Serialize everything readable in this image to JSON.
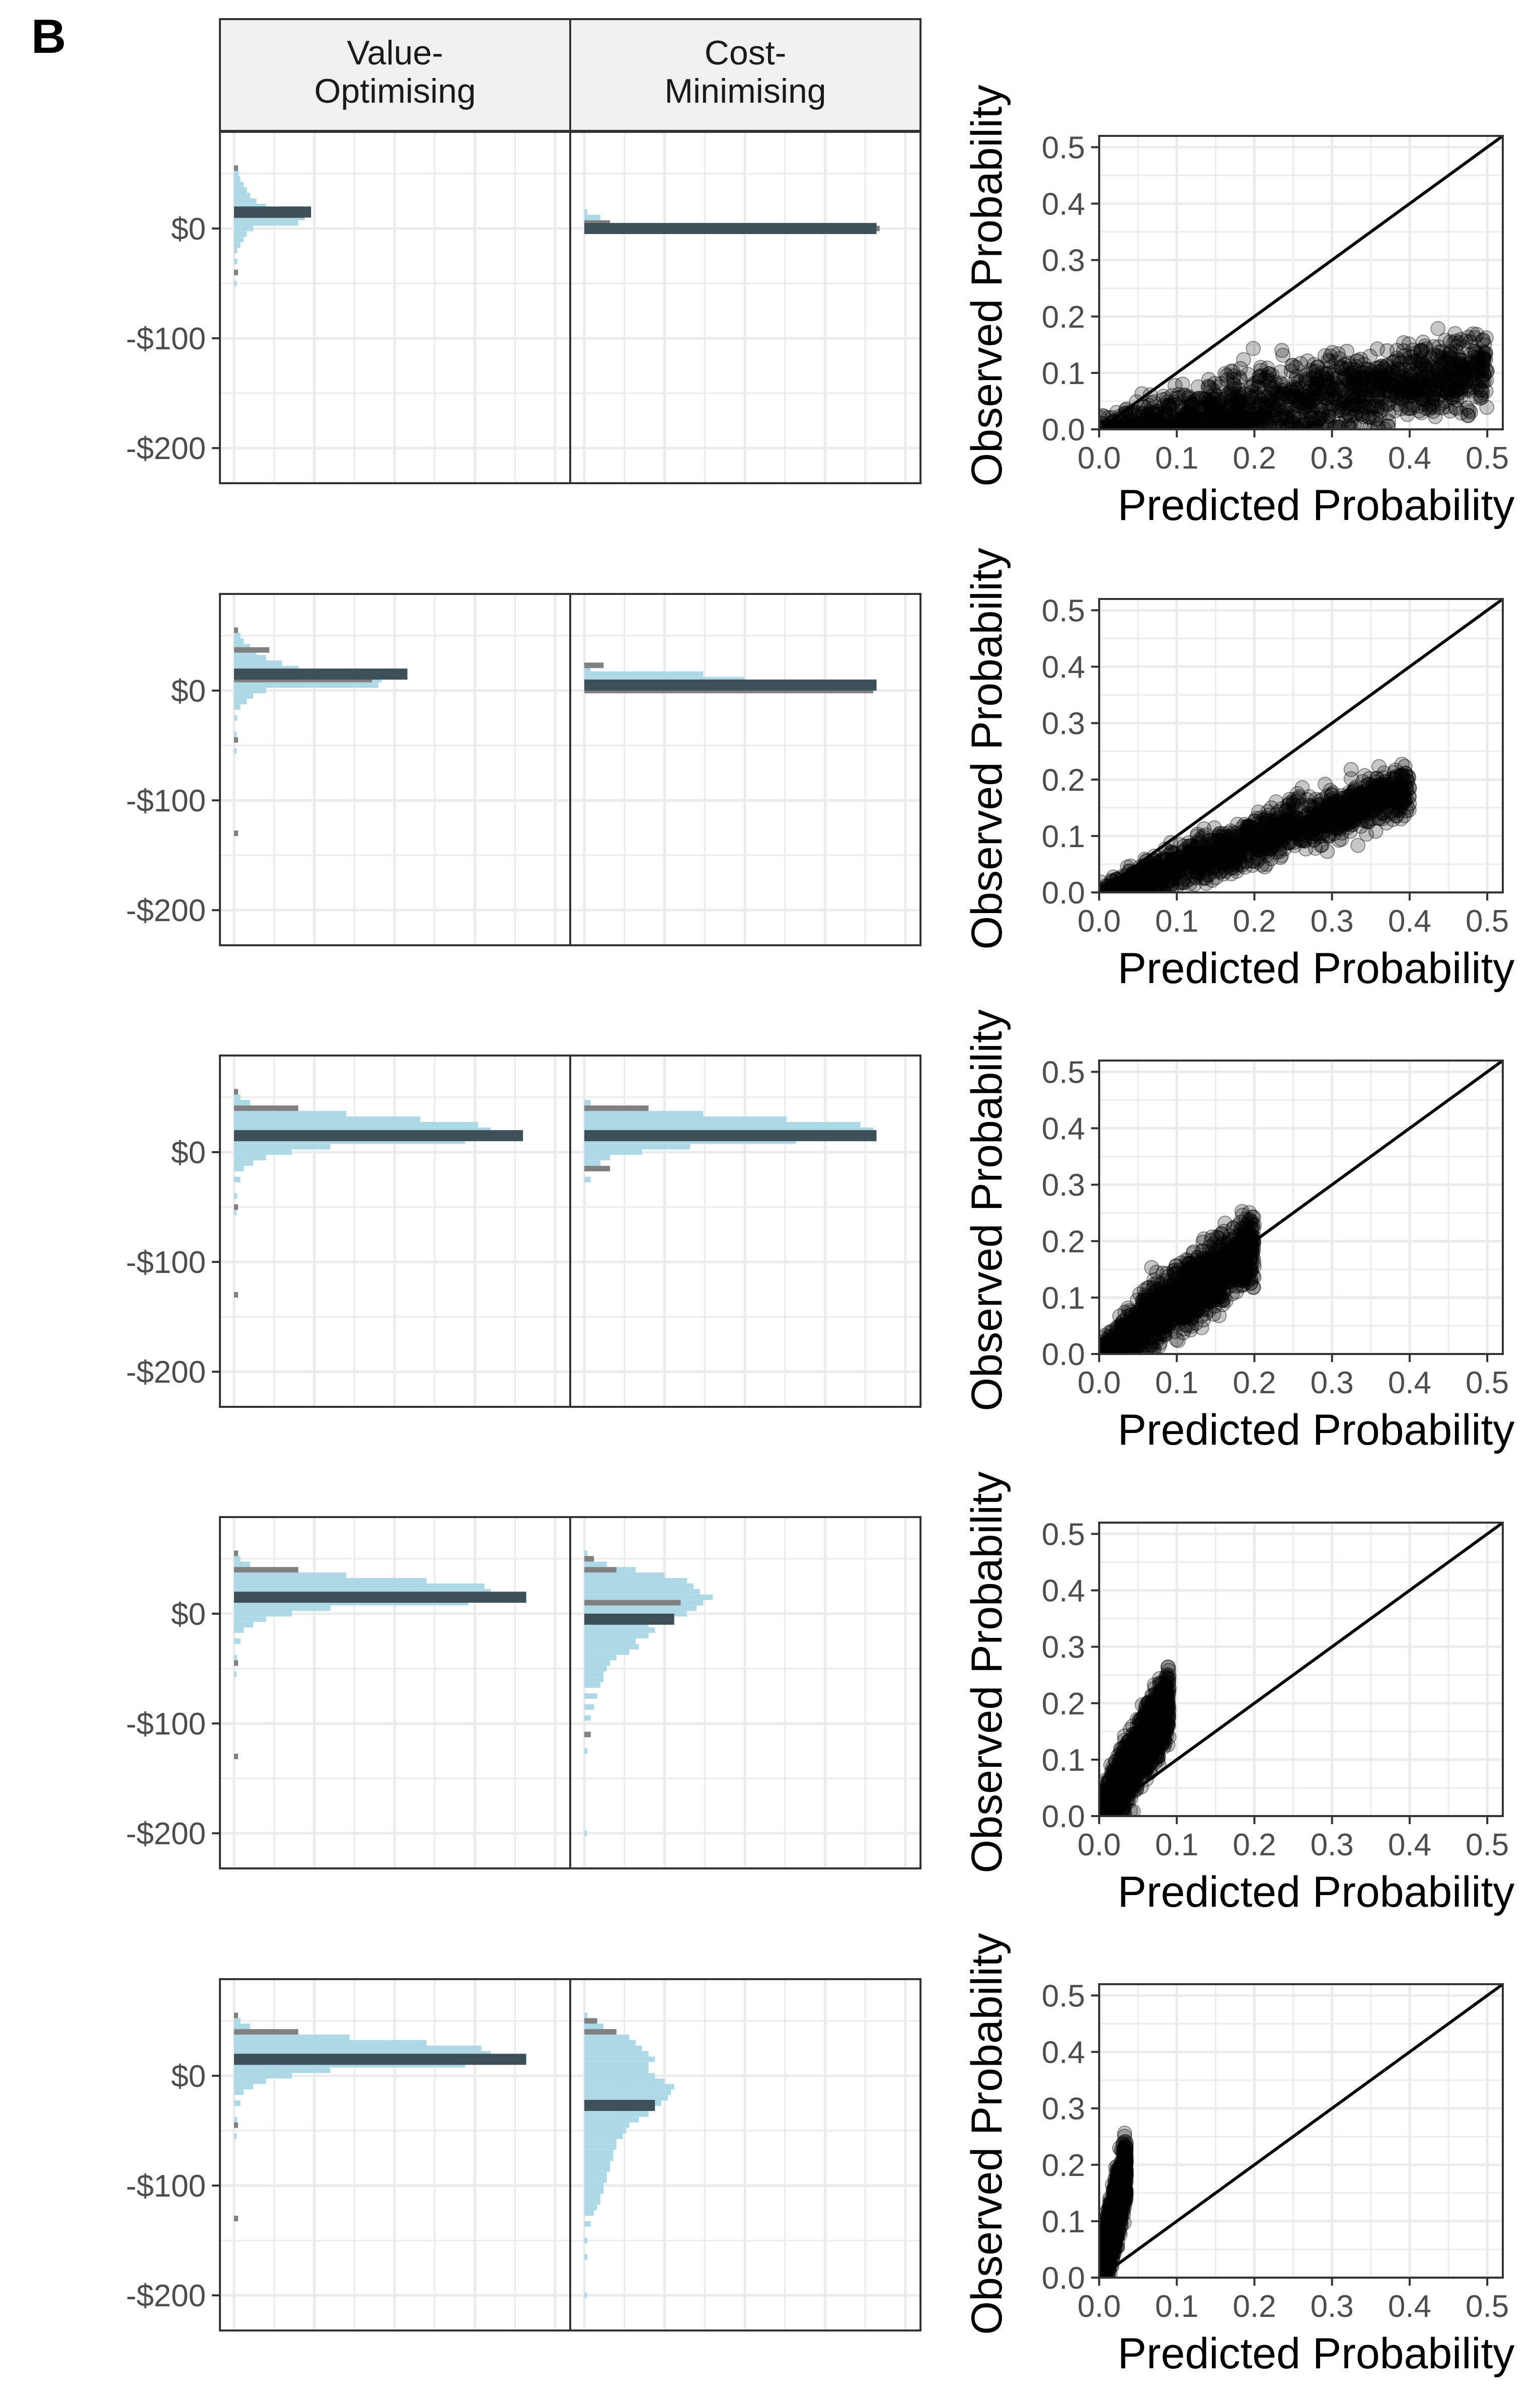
{
  "panel_label": "B",
  "strips": [
    "Value-\nOptimising",
    "Cost-\nMinimising"
  ],
  "histogram_axis": {
    "ticks": [
      {
        "value": 0,
        "label": "$0"
      },
      {
        "value": -100,
        "label": "-$100"
      },
      {
        "value": -200,
        "label": "-$200"
      }
    ],
    "ylim": [
      -232,
      88
    ],
    "bin_width": 5
  },
  "calibration_axis": {
    "xlabel": "Predicted Probability",
    "ylabel": "Observed Probability",
    "xlim": [
      0,
      0.52
    ],
    "ylim": [
      0,
      0.52
    ],
    "ticks": [
      0.0,
      0.1,
      0.2,
      0.3,
      0.4,
      0.5
    ],
    "tick_labels": [
      "0.0",
      "0.1",
      "0.2",
      "0.3",
      "0.4",
      "0.5"
    ]
  },
  "colors": {
    "hist_fill": "#add8e6",
    "hist_grey": "#808080",
    "median_bar": "#3d4f57",
    "points": "#000000",
    "grid": "#ebebeb",
    "panel_border": "#333333",
    "strip_fill": "#f0f0f0"
  },
  "chart_data": [
    {
      "type": "bar",
      "row": 1,
      "facet": "Value-Optimising",
      "bins": [
        {
          "y": 55,
          "w": 0.01
        },
        {
          "y": 50,
          "w": 0.015
        },
        {
          "y": 45,
          "w": 0.02
        },
        {
          "y": 40,
          "w": 0.03
        },
        {
          "y": 35,
          "w": 0.04
        },
        {
          "y": 30,
          "w": 0.05
        },
        {
          "y": 25,
          "w": 0.07
        },
        {
          "y": 20,
          "w": 0.1
        },
        {
          "y": 15,
          "w": 0.14
        },
        {
          "y": 10,
          "w": 0.22
        },
        {
          "y": 5,
          "w": 0.2
        },
        {
          "y": 0,
          "w": 0.06
        },
        {
          "y": -5,
          "w": 0.04
        },
        {
          "y": -10,
          "w": 0.03
        },
        {
          "y": -15,
          "w": 0.02
        },
        {
          "y": -20,
          "w": 0.01
        },
        {
          "y": -30,
          "w": 0.01
        },
        {
          "y": -50,
          "w": 0.008
        }
      ],
      "grey_marks": [
        {
          "y": 55,
          "w": 0.006
        },
        {
          "y": 12,
          "w": 0.22
        },
        {
          "y": -40,
          "w": 0.006
        }
      ],
      "median": {
        "y": 15,
        "w": 0.24
      }
    },
    {
      "type": "bar",
      "row": 1,
      "facet": "Cost-Minimising",
      "bins": [
        {
          "y": 15,
          "w": 0.01
        },
        {
          "y": 10,
          "w": 0.05
        },
        {
          "y": 5,
          "w": 0.07
        },
        {
          "y": 0,
          "w": 0.9
        }
      ],
      "grey_marks": [
        {
          "y": 5,
          "w": 0.08
        },
        {
          "y": 0,
          "w": 0.92
        }
      ],
      "median": {
        "y": 0,
        "w": 0.91
      }
    },
    {
      "type": "bar",
      "row": 2,
      "facet": "Value-Optimising",
      "bins": [
        {
          "y": 55,
          "w": 0.01
        },
        {
          "y": 50,
          "w": 0.02
        },
        {
          "y": 45,
          "w": 0.03
        },
        {
          "y": 40,
          "w": 0.05
        },
        {
          "y": 35,
          "w": 0.07
        },
        {
          "y": 30,
          "w": 0.1
        },
        {
          "y": 25,
          "w": 0.15
        },
        {
          "y": 20,
          "w": 0.2
        },
        {
          "y": 15,
          "w": 0.33
        },
        {
          "y": 10,
          "w": 0.46
        },
        {
          "y": 5,
          "w": 0.45
        },
        {
          "y": 0,
          "w": 0.1
        },
        {
          "y": -5,
          "w": 0.06
        },
        {
          "y": -10,
          "w": 0.04
        },
        {
          "y": -15,
          "w": 0.02
        },
        {
          "y": -25,
          "w": 0.01
        },
        {
          "y": -40,
          "w": 0.008
        },
        {
          "y": -55,
          "w": 0.008
        }
      ],
      "grey_marks": [
        {
          "y": 55,
          "w": 0.006
        },
        {
          "y": 37,
          "w": 0.11
        },
        {
          "y": 10,
          "w": 0.43
        },
        {
          "y": -45,
          "w": 0.006
        },
        {
          "y": -130,
          "w": 0.004
        }
      ],
      "median": {
        "y": 15,
        "w": 0.54
      }
    },
    {
      "type": "bar",
      "row": 2,
      "facet": "Cost-Minimising",
      "bins": [
        {
          "y": 20,
          "w": 0.02
        },
        {
          "y": 15,
          "w": 0.37
        },
        {
          "y": 10,
          "w": 0.5
        },
        {
          "y": 5,
          "w": 0.9
        },
        {
          "y": 0,
          "w": 0.05
        }
      ],
      "grey_marks": [
        {
          "y": 23,
          "w": 0.06
        },
        {
          "y": 0,
          "w": 0.9
        }
      ],
      "median": {
        "y": 5,
        "w": 0.91
      }
    },
    {
      "type": "bar",
      "row": 3,
      "facet": "Value-Optimising",
      "bins": [
        {
          "y": 55,
          "w": 0.01
        },
        {
          "y": 50,
          "w": 0.02
        },
        {
          "y": 45,
          "w": 0.05
        },
        {
          "y": 40,
          "w": 0.12
        },
        {
          "y": 35,
          "w": 0.35
        },
        {
          "y": 30,
          "w": 0.58
        },
        {
          "y": 25,
          "w": 0.76
        },
        {
          "y": 20,
          "w": 0.8
        },
        {
          "y": 15,
          "w": 0.87
        },
        {
          "y": 10,
          "w": 0.72
        },
        {
          "y": 5,
          "w": 0.3
        },
        {
          "y": 0,
          "w": 0.18
        },
        {
          "y": -5,
          "w": 0.1
        },
        {
          "y": -10,
          "w": 0.06
        },
        {
          "y": -15,
          "w": 0.03
        },
        {
          "y": -25,
          "w": 0.02
        },
        {
          "y": -40,
          "w": 0.01
        },
        {
          "y": -55,
          "w": 0.008
        }
      ],
      "grey_marks": [
        {
          "y": 55,
          "w": 0.006
        },
        {
          "y": 40,
          "w": 0.2
        },
        {
          "y": 15,
          "w": 0.86
        },
        {
          "y": -50,
          "w": 0.006
        },
        {
          "y": -130,
          "w": 0.004
        }
      ],
      "median": {
        "y": 15,
        "w": 0.9
      }
    },
    {
      "type": "bar",
      "row": 3,
      "facet": "Cost-Minimising",
      "bins": [
        {
          "y": 45,
          "w": 0.02
        },
        {
          "y": 40,
          "w": 0.1
        },
        {
          "y": 35,
          "w": 0.37
        },
        {
          "y": 30,
          "w": 0.63
        },
        {
          "y": 25,
          "w": 0.86
        },
        {
          "y": 20,
          "w": 0.9
        },
        {
          "y": 15,
          "w": 0.86
        },
        {
          "y": 10,
          "w": 0.66
        },
        {
          "y": 5,
          "w": 0.33
        },
        {
          "y": 0,
          "w": 0.18
        },
        {
          "y": -5,
          "w": 0.08
        },
        {
          "y": -10,
          "w": 0.05
        },
        {
          "y": -15,
          "w": 0.03
        },
        {
          "y": -25,
          "w": 0.02
        }
      ],
      "grey_marks": [
        {
          "y": 40,
          "w": 0.2
        },
        {
          "y": 15,
          "w": 0.9
        },
        {
          "y": -15,
          "w": 0.08
        }
      ],
      "median": {
        "y": 15,
        "w": 0.91
      }
    },
    {
      "type": "bar",
      "row": 4,
      "facet": "Value-Optimising",
      "bins": [
        {
          "y": 55,
          "w": 0.01
        },
        {
          "y": 50,
          "w": 0.02
        },
        {
          "y": 45,
          "w": 0.05
        },
        {
          "y": 40,
          "w": 0.15
        },
        {
          "y": 35,
          "w": 0.35
        },
        {
          "y": 30,
          "w": 0.6
        },
        {
          "y": 25,
          "w": 0.78
        },
        {
          "y": 20,
          "w": 0.8
        },
        {
          "y": 15,
          "w": 0.87
        },
        {
          "y": 10,
          "w": 0.73
        },
        {
          "y": 5,
          "w": 0.3
        },
        {
          "y": 0,
          "w": 0.18
        },
        {
          "y": -5,
          "w": 0.1
        },
        {
          "y": -10,
          "w": 0.06
        },
        {
          "y": -15,
          "w": 0.03
        },
        {
          "y": -25,
          "w": 0.02
        },
        {
          "y": -40,
          "w": 0.01
        },
        {
          "y": -55,
          "w": 0.008
        }
      ],
      "grey_marks": [
        {
          "y": 55,
          "w": 0.006
        },
        {
          "y": 40,
          "w": 0.2
        },
        {
          "y": 15,
          "w": 0.86
        },
        {
          "y": -45,
          "w": 0.006
        },
        {
          "y": -130,
          "w": 0.004
        }
      ],
      "median": {
        "y": 15,
        "w": 0.91
      }
    },
    {
      "type": "bar",
      "row": 4,
      "facet": "Cost-Minimising",
      "bins": [
        {
          "y": 55,
          "w": 0.01
        },
        {
          "y": 50,
          "w": 0.03
        },
        {
          "y": 45,
          "w": 0.07
        },
        {
          "y": 40,
          "w": 0.16
        },
        {
          "y": 35,
          "w": 0.25
        },
        {
          "y": 30,
          "w": 0.32
        },
        {
          "y": 25,
          "w": 0.34
        },
        {
          "y": 20,
          "w": 0.36
        },
        {
          "y": 15,
          "w": 0.4
        },
        {
          "y": 10,
          "w": 0.37
        },
        {
          "y": 5,
          "w": 0.35
        },
        {
          "y": 0,
          "w": 0.32
        },
        {
          "y": -5,
          "w": 0.24
        },
        {
          "y": -10,
          "w": 0.2
        },
        {
          "y": -15,
          "w": 0.22
        },
        {
          "y": -20,
          "w": 0.2
        },
        {
          "y": -25,
          "w": 0.16
        },
        {
          "y": -30,
          "w": 0.17
        },
        {
          "y": -35,
          "w": 0.14
        },
        {
          "y": -40,
          "w": 0.1
        },
        {
          "y": -45,
          "w": 0.08
        },
        {
          "y": -50,
          "w": 0.07
        },
        {
          "y": -55,
          "w": 0.06
        },
        {
          "y": -60,
          "w": 0.06
        },
        {
          "y": -65,
          "w": 0.05
        },
        {
          "y": -75,
          "w": 0.04
        },
        {
          "y": -85,
          "w": 0.03
        },
        {
          "y": -95,
          "w": 0.02
        },
        {
          "y": -110,
          "w": 0.02
        },
        {
          "y": -125,
          "w": 0.01
        },
        {
          "y": -200,
          "w": 0.008
        }
      ],
      "grey_marks": [
        {
          "y": 50,
          "w": 0.03
        },
        {
          "y": 40,
          "w": 0.1
        },
        {
          "y": 10,
          "w": 0.3
        },
        {
          "y": -110,
          "w": 0.02
        }
      ],
      "median": {
        "y": -5,
        "w": 0.28
      }
    },
    {
      "type": "bar",
      "row": 5,
      "facet": "Value-Optimising",
      "bins": [
        {
          "y": 55,
          "w": 0.01
        },
        {
          "y": 50,
          "w": 0.02
        },
        {
          "y": 45,
          "w": 0.05
        },
        {
          "y": 40,
          "w": 0.14
        },
        {
          "y": 35,
          "w": 0.36
        },
        {
          "y": 30,
          "w": 0.6
        },
        {
          "y": 25,
          "w": 0.77
        },
        {
          "y": 20,
          "w": 0.8
        },
        {
          "y": 15,
          "w": 0.87
        },
        {
          "y": 10,
          "w": 0.72
        },
        {
          "y": 5,
          "w": 0.3
        },
        {
          "y": 0,
          "w": 0.18
        },
        {
          "y": -5,
          "w": 0.1
        },
        {
          "y": -10,
          "w": 0.06
        },
        {
          "y": -15,
          "w": 0.03
        },
        {
          "y": -25,
          "w": 0.02
        },
        {
          "y": -40,
          "w": 0.01
        },
        {
          "y": -55,
          "w": 0.008
        }
      ],
      "grey_marks": [
        {
          "y": 55,
          "w": 0.006
        },
        {
          "y": 40,
          "w": 0.2
        },
        {
          "y": 15,
          "w": 0.86
        },
        {
          "y": -45,
          "w": 0.006
        },
        {
          "y": -130,
          "w": 0.004
        }
      ],
      "median": {
        "y": 15,
        "w": 0.91
      }
    },
    {
      "type": "bar",
      "row": 5,
      "facet": "Cost-Minimising",
      "bins": [
        {
          "y": 55,
          "w": 0.01
        },
        {
          "y": 50,
          "w": 0.03
        },
        {
          "y": 45,
          "w": 0.06
        },
        {
          "y": 40,
          "w": 0.1
        },
        {
          "y": 35,
          "w": 0.14
        },
        {
          "y": 30,
          "w": 0.16
        },
        {
          "y": 25,
          "w": 0.18
        },
        {
          "y": 20,
          "w": 0.2
        },
        {
          "y": 15,
          "w": 0.22
        },
        {
          "y": 10,
          "w": 0.2
        },
        {
          "y": 5,
          "w": 0.2
        },
        {
          "y": 0,
          "w": 0.22
        },
        {
          "y": -5,
          "w": 0.25
        },
        {
          "y": -10,
          "w": 0.28
        },
        {
          "y": -15,
          "w": 0.27
        },
        {
          "y": -20,
          "w": 0.26
        },
        {
          "y": -25,
          "w": 0.24
        },
        {
          "y": -30,
          "w": 0.2
        },
        {
          "y": -35,
          "w": 0.2
        },
        {
          "y": -40,
          "w": 0.17
        },
        {
          "y": -45,
          "w": 0.14
        },
        {
          "y": -50,
          "w": 0.13
        },
        {
          "y": -55,
          "w": 0.12
        },
        {
          "y": -60,
          "w": 0.1
        },
        {
          "y": -65,
          "w": 0.1
        },
        {
          "y": -70,
          "w": 0.09
        },
        {
          "y": -75,
          "w": 0.09
        },
        {
          "y": -80,
          "w": 0.08
        },
        {
          "y": -85,
          "w": 0.08
        },
        {
          "y": -90,
          "w": 0.07
        },
        {
          "y": -95,
          "w": 0.07
        },
        {
          "y": -100,
          "w": 0.06
        },
        {
          "y": -105,
          "w": 0.06
        },
        {
          "y": -110,
          "w": 0.05
        },
        {
          "y": -115,
          "w": 0.05
        },
        {
          "y": -120,
          "w": 0.04
        },
        {
          "y": -125,
          "w": 0.03
        },
        {
          "y": -135,
          "w": 0.02
        },
        {
          "y": -150,
          "w": 0.01
        },
        {
          "y": -165,
          "w": 0.01
        },
        {
          "y": -200,
          "w": 0.008
        }
      ],
      "grey_marks": [
        {
          "y": 50,
          "w": 0.04
        },
        {
          "y": 40,
          "w": 0.1
        }
      ],
      "median": {
        "y": -27,
        "w": 0.22
      }
    },
    {
      "type": "scatter",
      "row": 1,
      "xlabel": "Predicted Probability",
      "ylabel": "Observed Probability",
      "cloud": {
        "x_min": 0.0,
        "x_max": 0.5,
        "slope": 0.21,
        "spread": 0.045,
        "n": 1400
      },
      "reference_line": "y = x"
    },
    {
      "type": "scatter",
      "row": 2,
      "xlabel": "Predicted Probability",
      "ylabel": "Observed Probability",
      "cloud": {
        "x_min": 0.0,
        "x_max": 0.4,
        "slope": 0.46,
        "spread": 0.03,
        "n": 1400
      },
      "reference_line": "y = x"
    },
    {
      "type": "scatter",
      "row": 3,
      "xlabel": "Predicted Probability",
      "ylabel": "Observed Probability",
      "cloud": {
        "x_min": 0.0,
        "x_max": 0.2,
        "slope": 0.95,
        "spread": 0.04,
        "n": 1400
      },
      "reference_line": "y = x"
    },
    {
      "type": "scatter",
      "row": 4,
      "xlabel": "Predicted Probability",
      "ylabel": "Observed Probability",
      "cloud": {
        "x_min": 0.0,
        "x_max": 0.09,
        "slope": 2.2,
        "spread": 0.04,
        "n": 1400
      },
      "reference_line": "y = x"
    },
    {
      "type": "scatter",
      "row": 5,
      "xlabel": "Predicted Probability",
      "ylabel": "Observed Probability",
      "cloud": {
        "x_min": 0.0,
        "x_max": 0.035,
        "slope": 5.5,
        "spread": 0.04,
        "n": 1400
      },
      "reference_line": "y = x"
    }
  ]
}
